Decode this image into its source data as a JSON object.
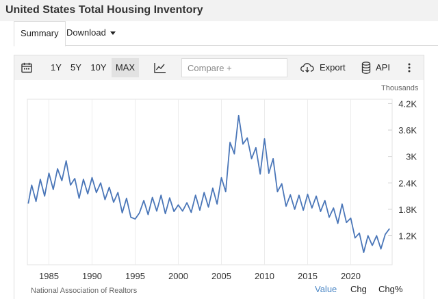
{
  "page": {
    "title": "United States Total Housing Inventory"
  },
  "tabs": {
    "summary": "Summary",
    "download": "Download"
  },
  "toolbar": {
    "ranges": [
      "1Y",
      "5Y",
      "10Y",
      "MAX"
    ],
    "active_range": "MAX",
    "compare_placeholder": "Compare +",
    "export_label": "Export",
    "api_label": "API"
  },
  "colors": {
    "line": "#4a76b8",
    "active_view": "#4a86c5"
  },
  "chart_data": {
    "type": "line",
    "units_label": "Thousands",
    "x_range": [
      1982.5,
      2024.8
    ],
    "ylim": [
      540,
      4300
    ],
    "y_ticks": [
      1200,
      1800,
      2400,
      3000,
      3600,
      4200
    ],
    "y_tick_labels": [
      "1.2K",
      "1.8K",
      "2.4K",
      "3K",
      "3.6K",
      "4.2K"
    ],
    "x_ticks": [
      1985,
      1990,
      1995,
      2000,
      2005,
      2010,
      2015,
      2020
    ],
    "x_tick_labels": [
      "1985",
      "1990",
      "1995",
      "2000",
      "2005",
      "2010",
      "2015",
      "2020"
    ],
    "grid": "vertical",
    "series": [
      {
        "x": [
          1982.6,
          1983.0,
          1983.5,
          1984.0,
          1984.5,
          1985.0,
          1985.5,
          1986.0,
          1986.5,
          1987.0,
          1987.5,
          1988.0,
          1988.5,
          1989.0,
          1989.5,
          1990.0,
          1990.5,
          1991.0,
          1991.5,
          1992.0,
          1992.5,
          1993.0,
          1993.5,
          1994.0,
          1994.5,
          1995.0,
          1995.5,
          1996.0,
          1996.5,
          1997.0,
          1997.5,
          1998.0,
          1998.5,
          1999.0,
          1999.5,
          2000.0,
          2000.5,
          2001.0,
          2001.5,
          2002.0,
          2002.5,
          2003.0,
          2003.5,
          2004.0,
          2004.5,
          2005.0,
          2005.5,
          2006.0,
          2006.5,
          2007.0,
          2007.5,
          2008.0,
          2008.5,
          2009.0,
          2009.5,
          2010.0,
          2010.5,
          2011.0,
          2011.5,
          2012.0,
          2012.5,
          2013.0,
          2013.5,
          2014.0,
          2014.5,
          2015.0,
          2015.5,
          2016.0,
          2016.5,
          2017.0,
          2017.5,
          2018.0,
          2018.5,
          2019.0,
          2019.5,
          2020.0,
          2020.5,
          2021.0,
          2021.5,
          2022.0,
          2022.5,
          2023.0,
          2023.5,
          2024.0,
          2024.5
        ],
        "y": [
          1930,
          2350,
          1980,
          2480,
          2100,
          2620,
          2250,
          2720,
          2450,
          2900,
          2350,
          2500,
          2050,
          2480,
          2150,
          2520,
          2180,
          2400,
          2020,
          2300,
          1960,
          2180,
          1720,
          2050,
          1620,
          1580,
          1720,
          2000,
          1680,
          2070,
          1760,
          2120,
          1700,
          2060,
          1750,
          1900,
          1760,
          1950,
          1730,
          2120,
          1780,
          2180,
          1850,
          2280,
          1920,
          2520,
          2200,
          3320,
          3060,
          3930,
          3280,
          3420,
          2950,
          3200,
          2600,
          3400,
          2620,
          2950,
          2200,
          2380,
          1870,
          2130,
          1800,
          2120,
          1780,
          2140,
          1830,
          2100,
          1750,
          2000,
          1620,
          1830,
          1480,
          1920,
          1500,
          1600,
          1150,
          1260,
          820,
          1200,
          980,
          1200,
          900,
          1230,
          1360
        ]
      }
    ]
  },
  "footer": {
    "source": "National Association of Realtors",
    "views": [
      "Value",
      "Chg",
      "Chg%"
    ],
    "active_view": "Value"
  }
}
